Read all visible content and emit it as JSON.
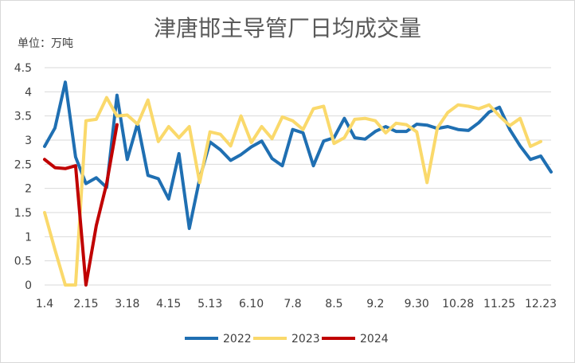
{
  "chart_data": {
    "type": "line",
    "title": "津唐邯主导管厂日均成交量",
    "unit_label": "单位：万吨",
    "ylim": [
      0,
      4.5
    ],
    "yticks": [
      "0",
      "0.5",
      "1",
      "1.5",
      "2",
      "2.5",
      "3",
      "3.5",
      "4",
      "4.5"
    ],
    "xlim": [
      0,
      49
    ],
    "x_tick_labels": [
      "1.4",
      "2.15",
      "3.18",
      "4.15",
      "5.13",
      "6.10",
      "7.8",
      "8.5",
      "9.2",
      "9.30",
      "10.28",
      "11.25",
      "12.23"
    ],
    "x_tick_positions": [
      0,
      4,
      8,
      12,
      16,
      20,
      24,
      28,
      32,
      36,
      40,
      44,
      48
    ],
    "grid": true,
    "legend_position": "bottom",
    "series": [
      {
        "name": "2022",
        "color": "#1F6FB2",
        "values": [
          2.87,
          3.25,
          4.2,
          2.65,
          2.1,
          2.22,
          2.02,
          3.93,
          2.6,
          3.35,
          2.27,
          2.2,
          1.78,
          2.72,
          1.17,
          2.2,
          2.96,
          2.8,
          2.58,
          2.7,
          2.86,
          2.98,
          2.62,
          2.47,
          3.22,
          3.15,
          2.47,
          2.98,
          3.05,
          3.45,
          3.05,
          3.02,
          3.18,
          3.28,
          3.18,
          3.18,
          3.33,
          3.31,
          3.24,
          3.28,
          3.22,
          3.2,
          3.36,
          3.58,
          3.68,
          3.22,
          2.88,
          2.6,
          2.67,
          2.34
        ]
      },
      {
        "name": "2023",
        "color": "#FAD96B",
        "values": [
          1.5,
          0.73,
          0.0,
          0.0,
          3.4,
          3.43,
          3.88,
          3.5,
          3.52,
          3.33,
          3.83,
          2.97,
          3.28,
          3.05,
          3.28,
          2.12,
          3.17,
          3.12,
          2.88,
          3.5,
          2.95,
          3.28,
          3.03,
          3.48,
          3.4,
          3.22,
          3.65,
          3.7,
          2.93,
          3.05,
          3.43,
          3.45,
          3.4,
          3.15,
          3.35,
          3.32,
          3.17,
          2.12,
          3.25,
          3.57,
          3.73,
          3.7,
          3.65,
          3.73,
          3.5,
          3.3,
          3.45,
          2.87,
          2.97
        ]
      },
      {
        "name": "2024",
        "color": "#C00000",
        "values": [
          2.6,
          2.43,
          2.41,
          2.47,
          0.0,
          1.23,
          2.1,
          3.32
        ]
      }
    ]
  }
}
